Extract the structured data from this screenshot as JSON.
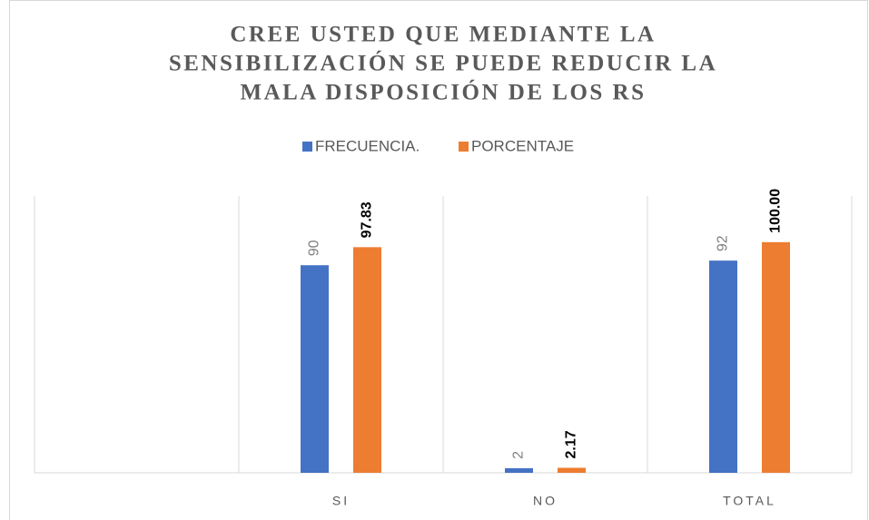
{
  "chart_data": {
    "type": "bar",
    "title": [
      "CREE USTED QUE MEDIANTE LA",
      "SENSIBILIZACIÓN SE PUEDE REDUCIR LA",
      "MALA DISPOSICIÓN DE LOS RS"
    ],
    "categories": [
      null,
      "SI",
      "NO",
      "TOTAL"
    ],
    "series": [
      {
        "name": "FRECUENCIA.",
        "color": "#4472c4",
        "values": [
          null,
          90,
          2,
          92
        ]
      },
      {
        "name": "PORCENTAJE",
        "color": "#ed7d31",
        "values": [
          null,
          97.83,
          2.17,
          100.0
        ],
        "value_labels": [
          null,
          "97.83",
          "2.17",
          "100.00"
        ]
      }
    ],
    "ylim": [
      0,
      120
    ],
    "legend": "top",
    "grid": "vertical"
  }
}
